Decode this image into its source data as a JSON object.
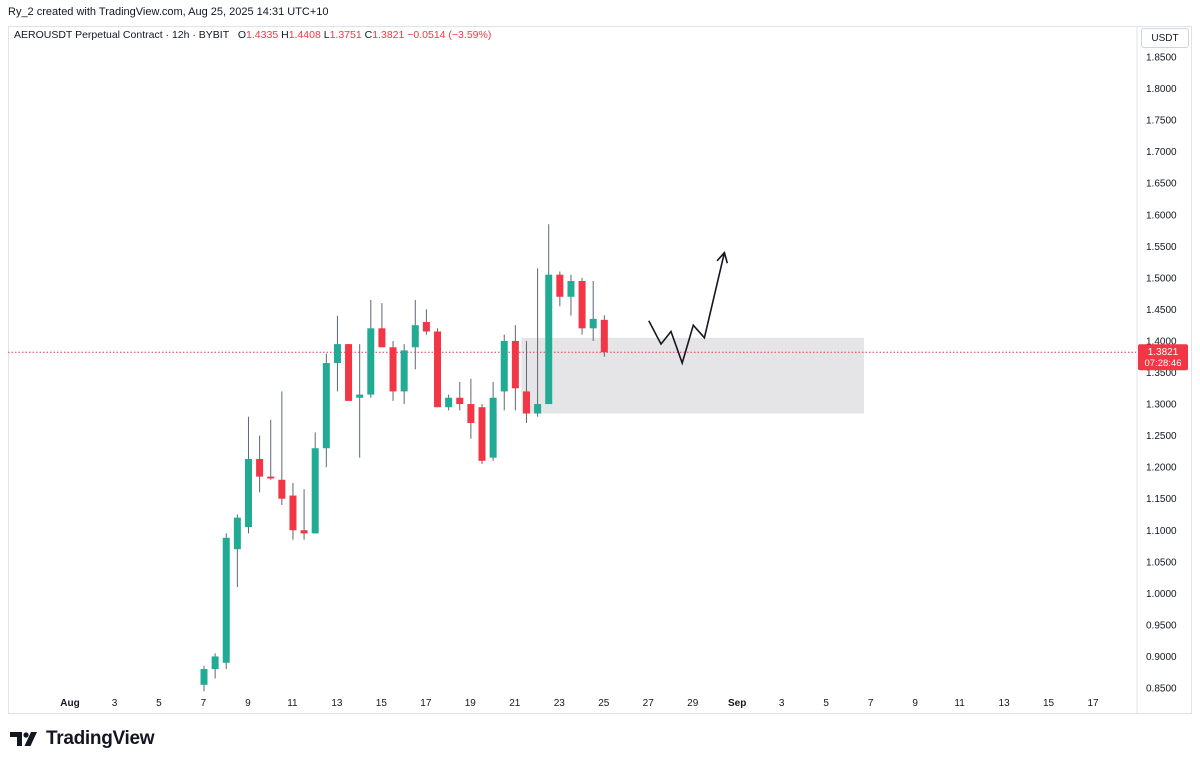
{
  "header": {
    "attribution": "Ry_2 created with TradingView.com, Aug 25, 2025 14:31 UTC+10"
  },
  "legend": {
    "symbol": "AEROUSDT Perpetual Contract · 12h · BYBIT",
    "open_label": "O",
    "open": "1.4335",
    "high_label": "H",
    "high": "1.4408",
    "low_label": "L",
    "low": "1.3751",
    "close_label": "C",
    "close": "1.3821",
    "change": "−0.0514 (−3.59%)"
  },
  "price_axis": {
    "unit": "USDT"
  },
  "last_price": {
    "value": "1.3821",
    "countdown": "07:28:46"
  },
  "brand": {
    "name": "TradingView"
  },
  "colors": {
    "up": "#22ab94",
    "down": "#f23645",
    "zone": "#e0e1e3",
    "projection": "#131722"
  },
  "chart_data": {
    "type": "candlestick",
    "interval": "12h",
    "ylim": [
      0.84,
      1.875
    ],
    "y_ticks": [
      "1.8500",
      "1.8000",
      "1.7500",
      "1.7000",
      "1.6500",
      "1.6000",
      "1.5500",
      "1.5000",
      "1.4500",
      "1.4000",
      "1.3500",
      "1.3000",
      "1.2500",
      "1.2000",
      "1.1500",
      "1.1000",
      "1.0500",
      "1.0000",
      "0.9500",
      "0.9000",
      "0.8500"
    ],
    "x_tick_labels": [
      "Aug",
      "3",
      "5",
      "7",
      "9",
      "11",
      "13",
      "15",
      "17",
      "19",
      "21",
      "23",
      "25",
      "27",
      "29",
      "Sep",
      "3",
      "5",
      "7",
      "9",
      "11",
      "13",
      "15",
      "17"
    ],
    "first_label_index": 0,
    "candles": [
      {
        "o": 0.855,
        "h": 0.885,
        "l": 0.845,
        "c": 0.88
      },
      {
        "o": 0.88,
        "h": 0.905,
        "l": 0.865,
        "c": 0.9
      },
      {
        "o": 0.89,
        "h": 1.095,
        "l": 0.88,
        "c": 1.088
      },
      {
        "o": 1.07,
        "h": 1.125,
        "l": 1.01,
        "c": 1.12
      },
      {
        "o": 1.105,
        "h": 1.28,
        "l": 1.095,
        "c": 1.213
      },
      {
        "o": 1.213,
        "h": 1.25,
        "l": 1.16,
        "c": 1.185
      },
      {
        "o": 1.185,
        "h": 1.275,
        "l": 1.18,
        "c": 1.182
      },
      {
        "o": 1.18,
        "h": 1.32,
        "l": 1.14,
        "c": 1.15
      },
      {
        "o": 1.155,
        "h": 1.175,
        "l": 1.085,
        "c": 1.1
      },
      {
        "o": 1.1,
        "h": 1.165,
        "l": 1.085,
        "c": 1.095
      },
      {
        "o": 1.095,
        "h": 1.255,
        "l": 1.095,
        "c": 1.23
      },
      {
        "o": 1.23,
        "h": 1.38,
        "l": 1.2,
        "c": 1.365
      },
      {
        "o": 1.365,
        "h": 1.44,
        "l": 1.32,
        "c": 1.395
      },
      {
        "o": 1.395,
        "h": 1.395,
        "l": 1.305,
        "c": 1.305
      },
      {
        "o": 1.31,
        "h": 1.395,
        "l": 1.215,
        "c": 1.315
      },
      {
        "o": 1.315,
        "h": 1.465,
        "l": 1.31,
        "c": 1.42
      },
      {
        "o": 1.42,
        "h": 1.46,
        "l": 1.39,
        "c": 1.39
      },
      {
        "o": 1.39,
        "h": 1.4,
        "l": 1.305,
        "c": 1.32
      },
      {
        "o": 1.32,
        "h": 1.395,
        "l": 1.3,
        "c": 1.385
      },
      {
        "o": 1.39,
        "h": 1.465,
        "l": 1.355,
        "c": 1.425
      },
      {
        "o": 1.43,
        "h": 1.45,
        "l": 1.41,
        "c": 1.415
      },
      {
        "o": 1.415,
        "h": 1.42,
        "l": 1.295,
        "c": 1.295
      },
      {
        "o": 1.295,
        "h": 1.315,
        "l": 1.29,
        "c": 1.31
      },
      {
        "o": 1.31,
        "h": 1.335,
        "l": 1.29,
        "c": 1.3
      },
      {
        "o": 1.3,
        "h": 1.34,
        "l": 1.245,
        "c": 1.27
      },
      {
        "o": 1.295,
        "h": 1.3,
        "l": 1.205,
        "c": 1.21
      },
      {
        "o": 1.215,
        "h": 1.335,
        "l": 1.21,
        "c": 1.31
      },
      {
        "o": 1.32,
        "h": 1.41,
        "l": 1.29,
        "c": 1.4
      },
      {
        "o": 1.4,
        "h": 1.425,
        "l": 1.29,
        "c": 1.325
      },
      {
        "o": 1.32,
        "h": 1.4,
        "l": 1.27,
        "c": 1.285
      },
      {
        "o": 1.285,
        "h": 1.515,
        "l": 1.28,
        "c": 1.3
      },
      {
        "o": 1.3,
        "h": 1.585,
        "l": 1.3,
        "c": 1.505
      },
      {
        "o": 1.505,
        "h": 1.51,
        "l": 1.455,
        "c": 1.47
      },
      {
        "o": 1.47,
        "h": 1.505,
        "l": 1.44,
        "c": 1.495
      },
      {
        "o": 1.495,
        "h": 1.5,
        "l": 1.41,
        "c": 1.42
      },
      {
        "o": 1.42,
        "h": 1.495,
        "l": 1.4,
        "c": 1.435
      },
      {
        "o": 1.4335,
        "h": 1.4408,
        "l": 1.3751,
        "c": 1.3821
      }
    ],
    "zone": {
      "from_candle": 28,
      "to_label": "5",
      "top": 1.405,
      "bottom": 1.285
    },
    "projection_path": [
      {
        "t": 40.0,
        "p": 1.432
      },
      {
        "t": 41.1,
        "p": 1.395
      },
      {
        "t": 42.0,
        "p": 1.415
      },
      {
        "t": 43.0,
        "p": 1.365
      },
      {
        "t": 44.0,
        "p": 1.425
      },
      {
        "t": 45.0,
        "p": 1.405
      },
      {
        "t": 46.8,
        "p": 1.54
      }
    ]
  }
}
